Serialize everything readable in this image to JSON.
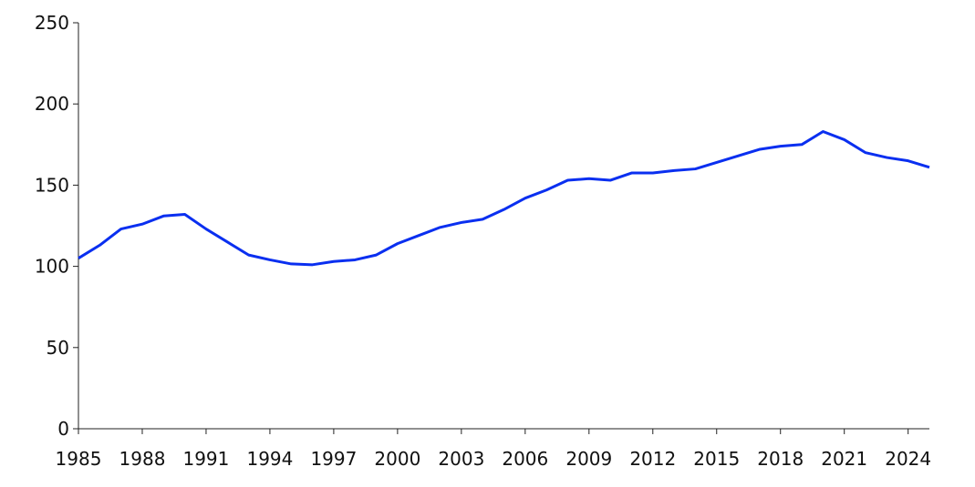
{
  "chart_data": {
    "type": "line",
    "x": [
      1985,
      1986,
      1987,
      1988,
      1989,
      1990,
      1991,
      1992,
      1993,
      1994,
      1995,
      1996,
      1997,
      1998,
      1999,
      2000,
      2001,
      2002,
      2003,
      2004,
      2005,
      2006,
      2007,
      2008,
      2009,
      2010,
      2011,
      2012,
      2013,
      2014,
      2015,
      2016,
      2017,
      2018,
      2019,
      2020,
      2021,
      2022,
      2023,
      2024,
      2025
    ],
    "series": [
      {
        "color": "#0a2ff0",
        "values": [
          105,
          113,
          123,
          126,
          131,
          132,
          123,
          115,
          107,
          104,
          101.5,
          101,
          103,
          104,
          107,
          114,
          119,
          124,
          127,
          129,
          135,
          142,
          147,
          153,
          154,
          153,
          157.5,
          157.5,
          159,
          160,
          164,
          168,
          172,
          174,
          175,
          183,
          178,
          170,
          167,
          165,
          161
        ]
      }
    ],
    "xlim": [
      1985,
      2025
    ],
    "xticks": [
      1985,
      1988,
      1991,
      1994,
      1997,
      2000,
      2003,
      2006,
      2009,
      2012,
      2015,
      2018,
      2021,
      2024
    ],
    "ylim": [
      0,
      250
    ],
    "yticks": [
      0,
      50,
      100,
      150,
      200,
      250
    ],
    "grid": false
  }
}
